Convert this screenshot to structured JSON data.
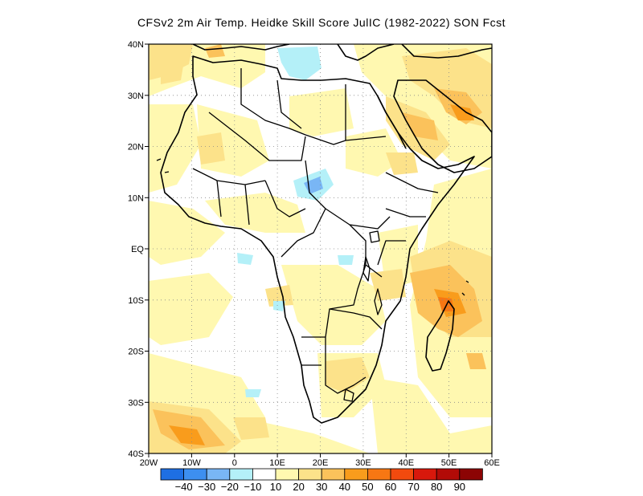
{
  "title": "CFSv2  2m Air Temp. Heidke Skill Score JulIC (1982-2022) SON Fcst",
  "map": {
    "lat_labels": [
      "40N",
      "30N",
      "20N",
      "10N",
      "EQ",
      "10S",
      "20S",
      "30S",
      "40S"
    ],
    "lon_labels": [
      "20W",
      "10W",
      "0",
      "10E",
      "20E",
      "30E",
      "40E",
      "50E",
      "60E"
    ],
    "lat_range": [
      -40,
      40
    ],
    "lon_range": [
      -20,
      60
    ]
  },
  "colorbar": {
    "labels": [
      "-40",
      "-30",
      "-20",
      "-10",
      "10",
      "20",
      "30",
      "40",
      "50",
      "60",
      "70",
      "80",
      "90"
    ],
    "colors": [
      "#1e6fe3",
      "#3d8ff0",
      "#79b6f5",
      "#b4f0f8",
      "#ffffff",
      "#fff8b0",
      "#fce28a",
      "#fbc25b",
      "#f99c1c",
      "#f77713",
      "#f24a0e",
      "#d8180c",
      "#b20b07",
      "#8c0404"
    ]
  },
  "colors": {
    "land_outline": "#000000",
    "grid": "#888888",
    "background": "#ffffff"
  }
}
